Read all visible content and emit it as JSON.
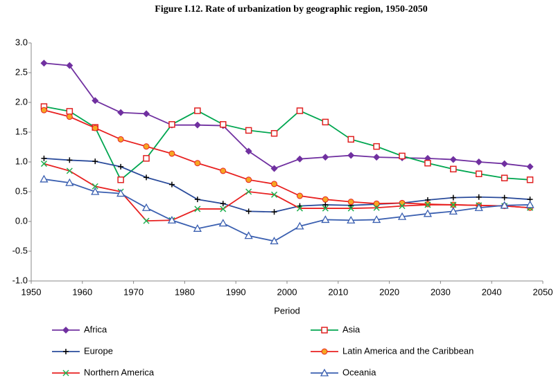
{
  "chart_data": {
    "type": "line",
    "title": "Figure I.12. Rate of urbanization by geographic region, 1950-2050",
    "x_label": "Period",
    "x": [
      1952.5,
      1957.5,
      1962.5,
      1967.5,
      1972.5,
      1977.5,
      1982.5,
      1987.5,
      1992.5,
      1997.5,
      2002.5,
      2007.5,
      2012.5,
      2017.5,
      2022.5,
      2027.5,
      2032.5,
      2037.5,
      2042.5,
      2047.5
    ],
    "xlim": [
      1950,
      2050
    ],
    "xticks": [
      1950,
      1960,
      1970,
      1980,
      1990,
      2000,
      2010,
      2020,
      2030,
      2040,
      2050
    ],
    "ylim": [
      -1,
      3
    ],
    "yticks": [
      {
        "value": -1,
        "label": "-1.0"
      },
      -0.5,
      {
        "value": 0,
        "label": "0.0"
      },
      0.5,
      {
        "value": 1,
        "label": "1.0"
      },
      1.5,
      {
        "value": 2,
        "label": "2.0"
      },
      2.5,
      {
        "value": 3,
        "label": "3.0"
      }
    ],
    "grid": false,
    "series": [
      {
        "name": "Africa",
        "color": "#7030a0",
        "marker": "diamond",
        "marker_color": "#7030a0",
        "values": [
          2.66,
          2.62,
          2.03,
          1.83,
          1.81,
          1.62,
          1.62,
          1.61,
          1.18,
          0.89,
          1.05,
          1.08,
          1.11,
          1.08,
          1.07,
          1.06,
          1.04,
          1.0,
          0.97,
          0.92
        ]
      },
      {
        "name": "Asia",
        "color": "#00a650",
        "marker": "square",
        "marker_color": "#e02020",
        "values": [
          1.93,
          1.85,
          1.58,
          0.7,
          1.06,
          1.63,
          1.86,
          1.63,
          1.53,
          1.48,
          1.86,
          1.67,
          1.38,
          1.26,
          1.1,
          0.98,
          0.88,
          0.8,
          0.73,
          0.7
        ]
      },
      {
        "name": "Europe",
        "color": "#2a4b9b",
        "marker": "plus",
        "marker_color": "#000000",
        "values": [
          1.06,
          1.03,
          1.01,
          0.92,
          0.74,
          0.62,
          0.37,
          0.3,
          0.17,
          0.16,
          0.26,
          0.28,
          0.27,
          0.29,
          0.31,
          0.36,
          0.4,
          0.41,
          0.4,
          0.37
        ]
      },
      {
        "name": "Latin America and the Caribbean",
        "color": "#e82020",
        "marker": "circle",
        "marker_color": "#f5a623",
        "values": [
          1.87,
          1.76,
          1.57,
          1.38,
          1.26,
          1.14,
          0.98,
          0.85,
          0.7,
          0.63,
          0.43,
          0.37,
          0.33,
          0.3,
          0.31,
          0.29,
          0.28,
          0.27,
          0.26,
          0.23
        ]
      },
      {
        "name": "Northern America",
        "color": "#e82020",
        "marker": "x",
        "marker_color": "#20b050",
        "values": [
          0.97,
          0.85,
          0.59,
          0.5,
          0.01,
          0.02,
          0.21,
          0.21,
          0.5,
          0.45,
          0.22,
          0.22,
          0.22,
          0.23,
          0.26,
          0.28,
          0.28,
          0.27,
          0.26,
          0.23
        ]
      },
      {
        "name": "Oceania",
        "color": "#3a5fb0",
        "marker": "triangle",
        "marker_color": "#3a5fb0",
        "values": [
          0.71,
          0.65,
          0.5,
          0.47,
          0.23,
          0.02,
          -0.12,
          -0.03,
          -0.24,
          -0.33,
          -0.08,
          0.03,
          0.02,
          0.03,
          0.08,
          0.13,
          0.17,
          0.23,
          0.27,
          0.28
        ]
      }
    ]
  }
}
